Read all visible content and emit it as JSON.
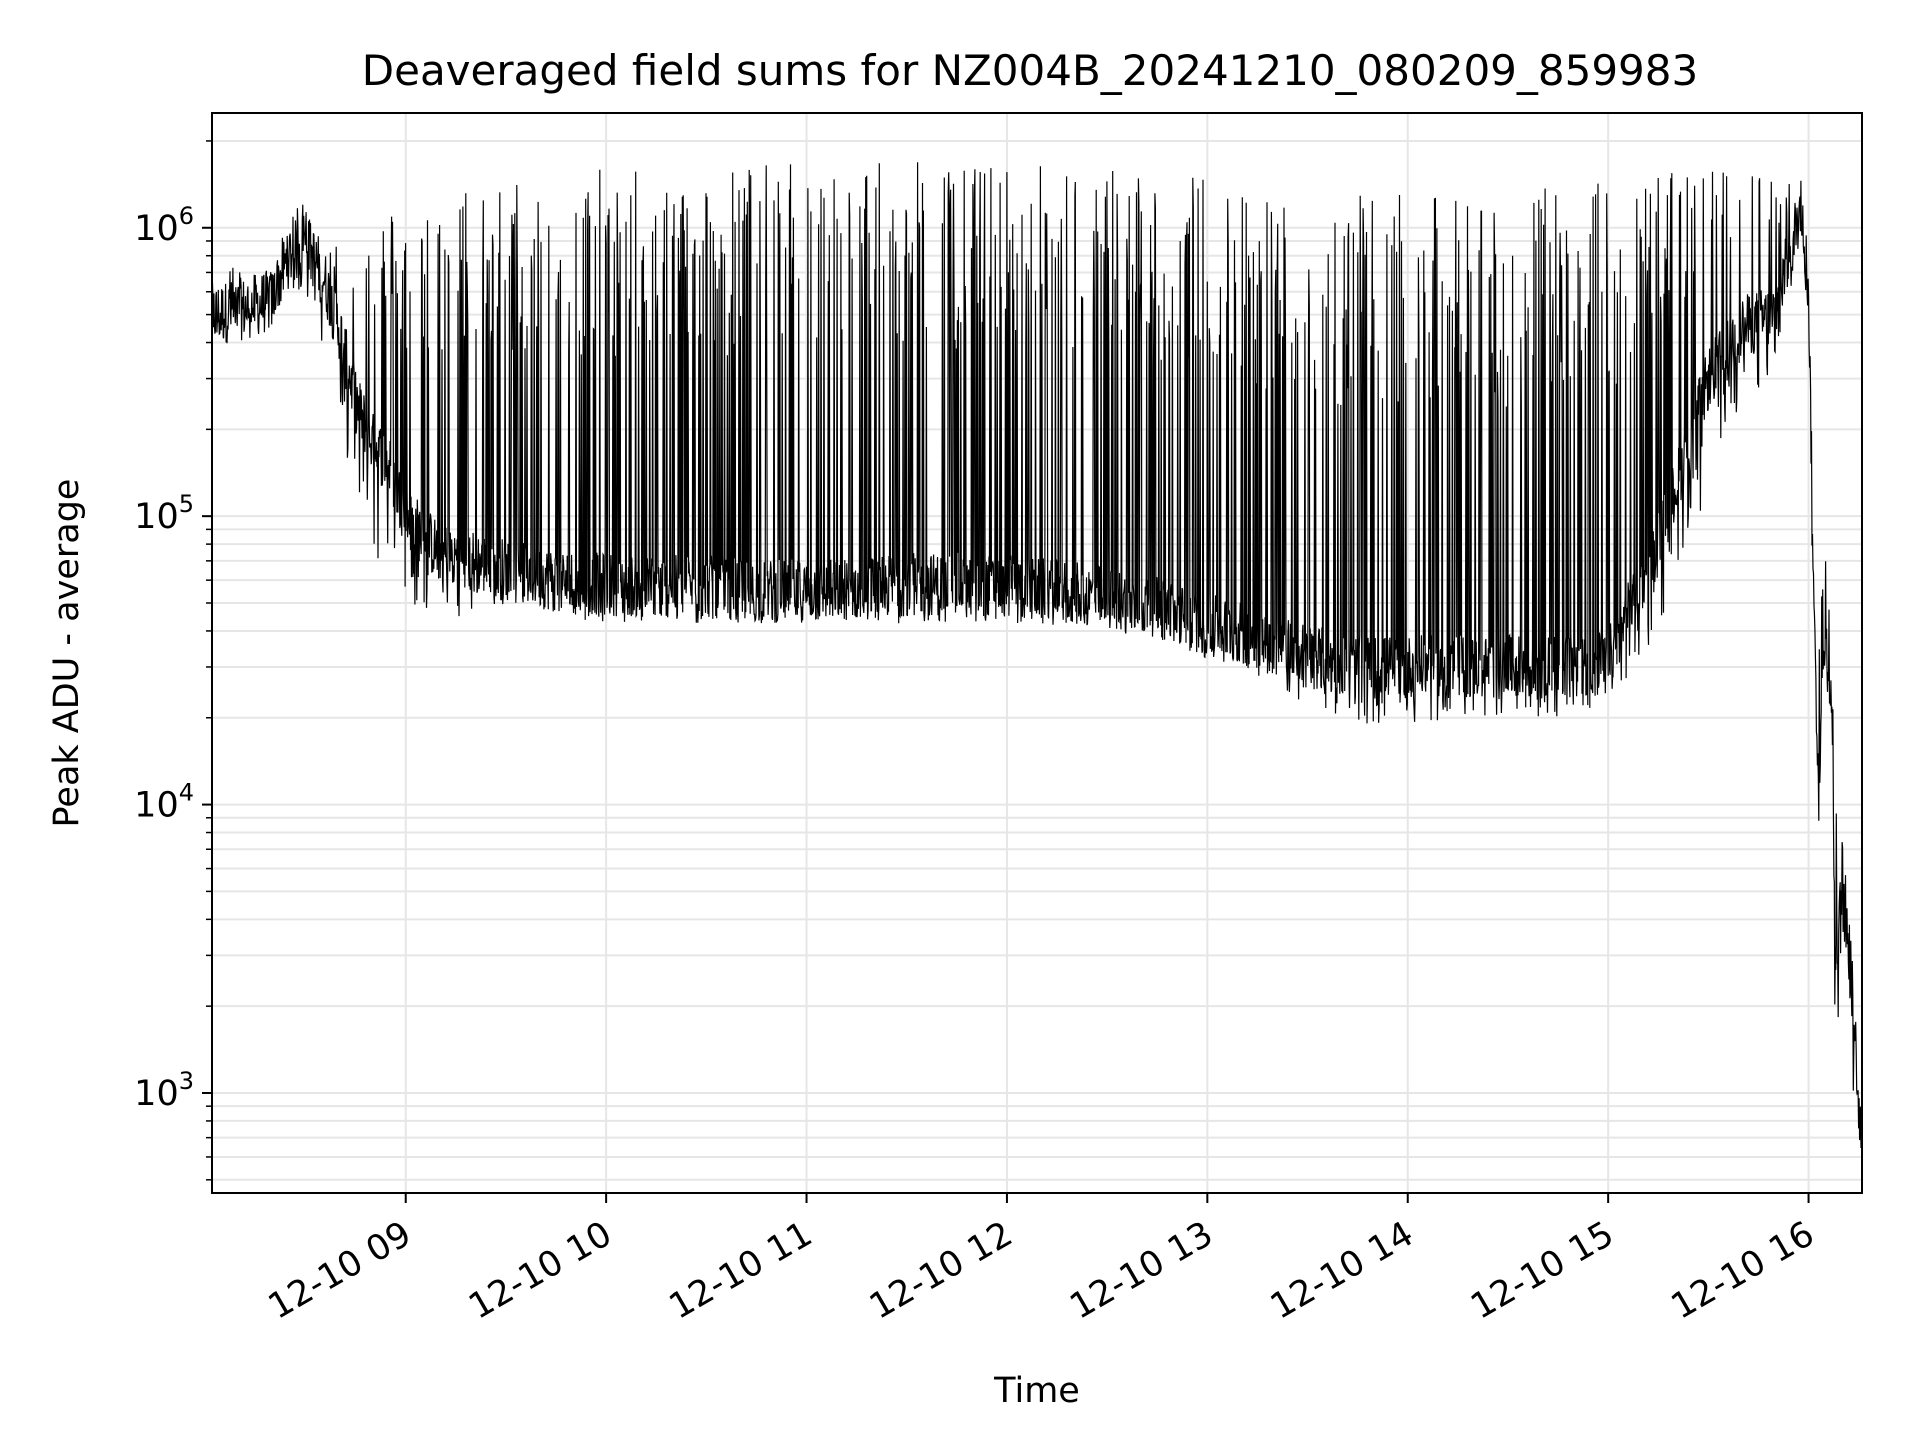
{
  "chart_data": {
    "type": "line",
    "title": "Deaveraged field sums for NZ004B_20241210_080209_859983",
    "xlabel": "Time",
    "ylabel": "Peak ADU - average",
    "yscale": "log",
    "xlim": [
      "2024-12-10 08:02",
      "2024-12-10 16:16"
    ],
    "ylim": [
      450,
      2500000
    ],
    "grid": true,
    "line_color": "#000000",
    "x_ticks": [
      {
        "date": "2024-12-10 09:00",
        "label": "12-10 09"
      },
      {
        "date": "2024-12-10 10:00",
        "label": "12-10 10"
      },
      {
        "date": "2024-12-10 11:00",
        "label": "12-10 11"
      },
      {
        "date": "2024-12-10 12:00",
        "label": "12-10 12"
      },
      {
        "date": "2024-12-10 13:00",
        "label": "12-10 13"
      },
      {
        "date": "2024-12-10 14:00",
        "label": "12-10 14"
      },
      {
        "date": "2024-12-10 15:00",
        "label": "12-10 15"
      },
      {
        "date": "2024-12-10 16:00",
        "label": "12-10 16"
      }
    ],
    "y_ticks": [
      {
        "value": 1000,
        "base": "10",
        "exp": "3"
      },
      {
        "value": 10000,
        "base": "10",
        "exp": "4"
      },
      {
        "value": 100000,
        "base": "10",
        "exp": "5"
      },
      {
        "value": 1000000,
        "base": "10",
        "exp": "6"
      }
    ],
    "series": [
      {
        "x": [
          "2024-12-10 08:02",
          "2024-12-10 08:10",
          "2024-12-10 08:20",
          "2024-12-10 08:25",
          "2024-12-10 08:30",
          "2024-12-10 08:35",
          "2024-12-10 08:40",
          "2024-12-10 08:45",
          "2024-12-10 08:50",
          "2024-12-10 08:55",
          "2024-12-10 09:00",
          "2024-12-10 09:10",
          "2024-12-10 09:20",
          "2024-12-10 09:30",
          "2024-12-10 09:45",
          "2024-12-10 10:00",
          "2024-12-10 10:15",
          "2024-12-10 10:30",
          "2024-12-10 10:45",
          "2024-12-10 11:00",
          "2024-12-10 11:15",
          "2024-12-10 11:30",
          "2024-12-10 11:45",
          "2024-12-10 12:00",
          "2024-12-10 12:15",
          "2024-12-10 12:30",
          "2024-12-10 12:45",
          "2024-12-10 13:00",
          "2024-12-10 13:15",
          "2024-12-10 13:30",
          "2024-12-10 13:45",
          "2024-12-10 14:00",
          "2024-12-10 14:15",
          "2024-12-10 14:30",
          "2024-12-10 14:45",
          "2024-12-10 15:00",
          "2024-12-10 15:15",
          "2024-12-10 15:30",
          "2024-12-10 15:40",
          "2024-12-10 15:50",
          "2024-12-10 15:55",
          "2024-12-10 15:58",
          "2024-12-10 16:00",
          "2024-12-10 16:01",
          "2024-12-10 16:02",
          "2024-12-10 16:03",
          "2024-12-10 16:05",
          "2024-12-10 16:07",
          "2024-12-10 16:08",
          "2024-12-10 16:10",
          "2024-12-10 16:12",
          "2024-12-10 16:14",
          "2024-12-10 16:16"
        ],
        "baseline": [
          500000,
          520000,
          560000,
          800000,
          880000,
          700000,
          450000,
          250000,
          180000,
          150000,
          100000,
          75000,
          70000,
          65000,
          60000,
          58000,
          57000,
          57000,
          55000,
          55000,
          56000,
          58000,
          58000,
          57000,
          55000,
          52000,
          48000,
          42000,
          38000,
          33000,
          30000,
          30000,
          30000,
          30000,
          30000,
          32000,
          80000,
          300000,
          450000,
          500000,
          900000,
          1200000,
          600000,
          130000,
          30000,
          12000,
          40000,
          20000,
          3000,
          5000,
          3000,
          1500,
          700
        ],
        "peaks": [
          700000,
          800000,
          700000,
          1100000,
          1300000,
          1000000,
          900000,
          900000,
          1100000,
          1200000,
          1100000,
          1300000,
          1500000,
          1500000,
          1600000,
          1600000,
          1600000,
          1600000,
          1700000,
          1700000,
          1700000,
          1700000,
          1700000,
          1700000,
          1700000,
          1650000,
          1600000,
          1550000,
          1450000,
          1300000,
          1300000,
          1300000,
          1300000,
          1300000,
          1400000,
          1500000,
          1600000,
          1600000,
          1600000,
          1600000,
          1400000,
          1300000,
          900000,
          150000,
          40000,
          50000,
          100000,
          50000,
          10000,
          8000,
          4500,
          2500,
          1000
        ],
        "troughs": [
          400000,
          450000,
          500000,
          600000,
          600000,
          400000,
          200000,
          110000,
          80000,
          55000,
          50000,
          45000,
          45000,
          45000,
          45000,
          42000,
          42000,
          42000,
          42000,
          42000,
          42000,
          42000,
          42000,
          42000,
          42000,
          40000,
          38000,
          32000,
          28000,
          22000,
          19000,
          19000,
          20000,
          20000,
          20000,
          22000,
          40000,
          120000,
          250000,
          300000,
          600000,
          1000000,
          400000,
          60000,
          7000,
          8000,
          15000,
          6000,
          1300,
          2000,
          1200,
          800,
          600
        ]
      }
    ]
  }
}
